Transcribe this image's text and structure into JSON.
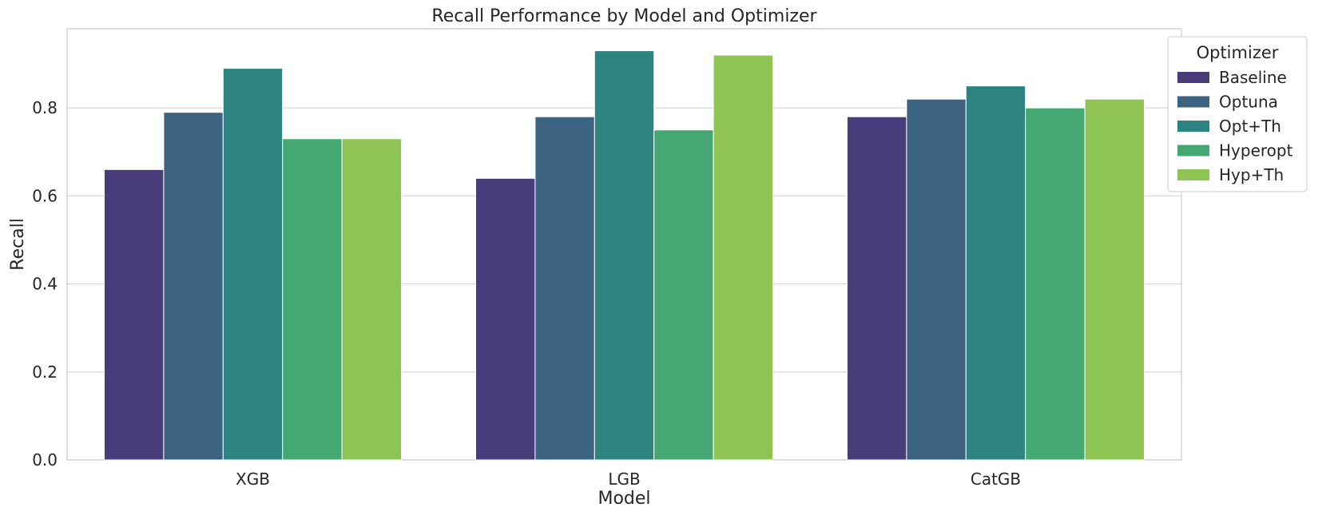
{
  "chart_data": {
    "type": "bar",
    "title": "Recall Performance by Model and Optimizer",
    "xlabel": "Model",
    "ylabel": "Recall",
    "categories": [
      "XGB",
      "LGB",
      "CatGB"
    ],
    "ylim": [
      0,
      0.98
    ],
    "yticks": [
      "0.0",
      "0.2",
      "0.4",
      "0.6",
      "0.8"
    ],
    "grid": true,
    "legend": {
      "title": "Optimizer",
      "placement": "outside-top-right"
    },
    "series": [
      {
        "name": "Baseline",
        "color": "#483d7a",
        "values": [
          0.66,
          0.64,
          0.78
        ]
      },
      {
        "name": "Optuna",
        "color": "#3d6382",
        "values": [
          0.79,
          0.78,
          0.82
        ]
      },
      {
        "name": "Opt+Th",
        "color": "#2d8380",
        "values": [
          0.89,
          0.93,
          0.85
        ]
      },
      {
        "name": "Hyperopt",
        "color": "#45a873",
        "values": [
          0.73,
          0.75,
          0.8
        ]
      },
      {
        "name": "Hyp+Th",
        "color": "#8dc454",
        "values": [
          0.73,
          0.92,
          0.82
        ]
      }
    ]
  }
}
